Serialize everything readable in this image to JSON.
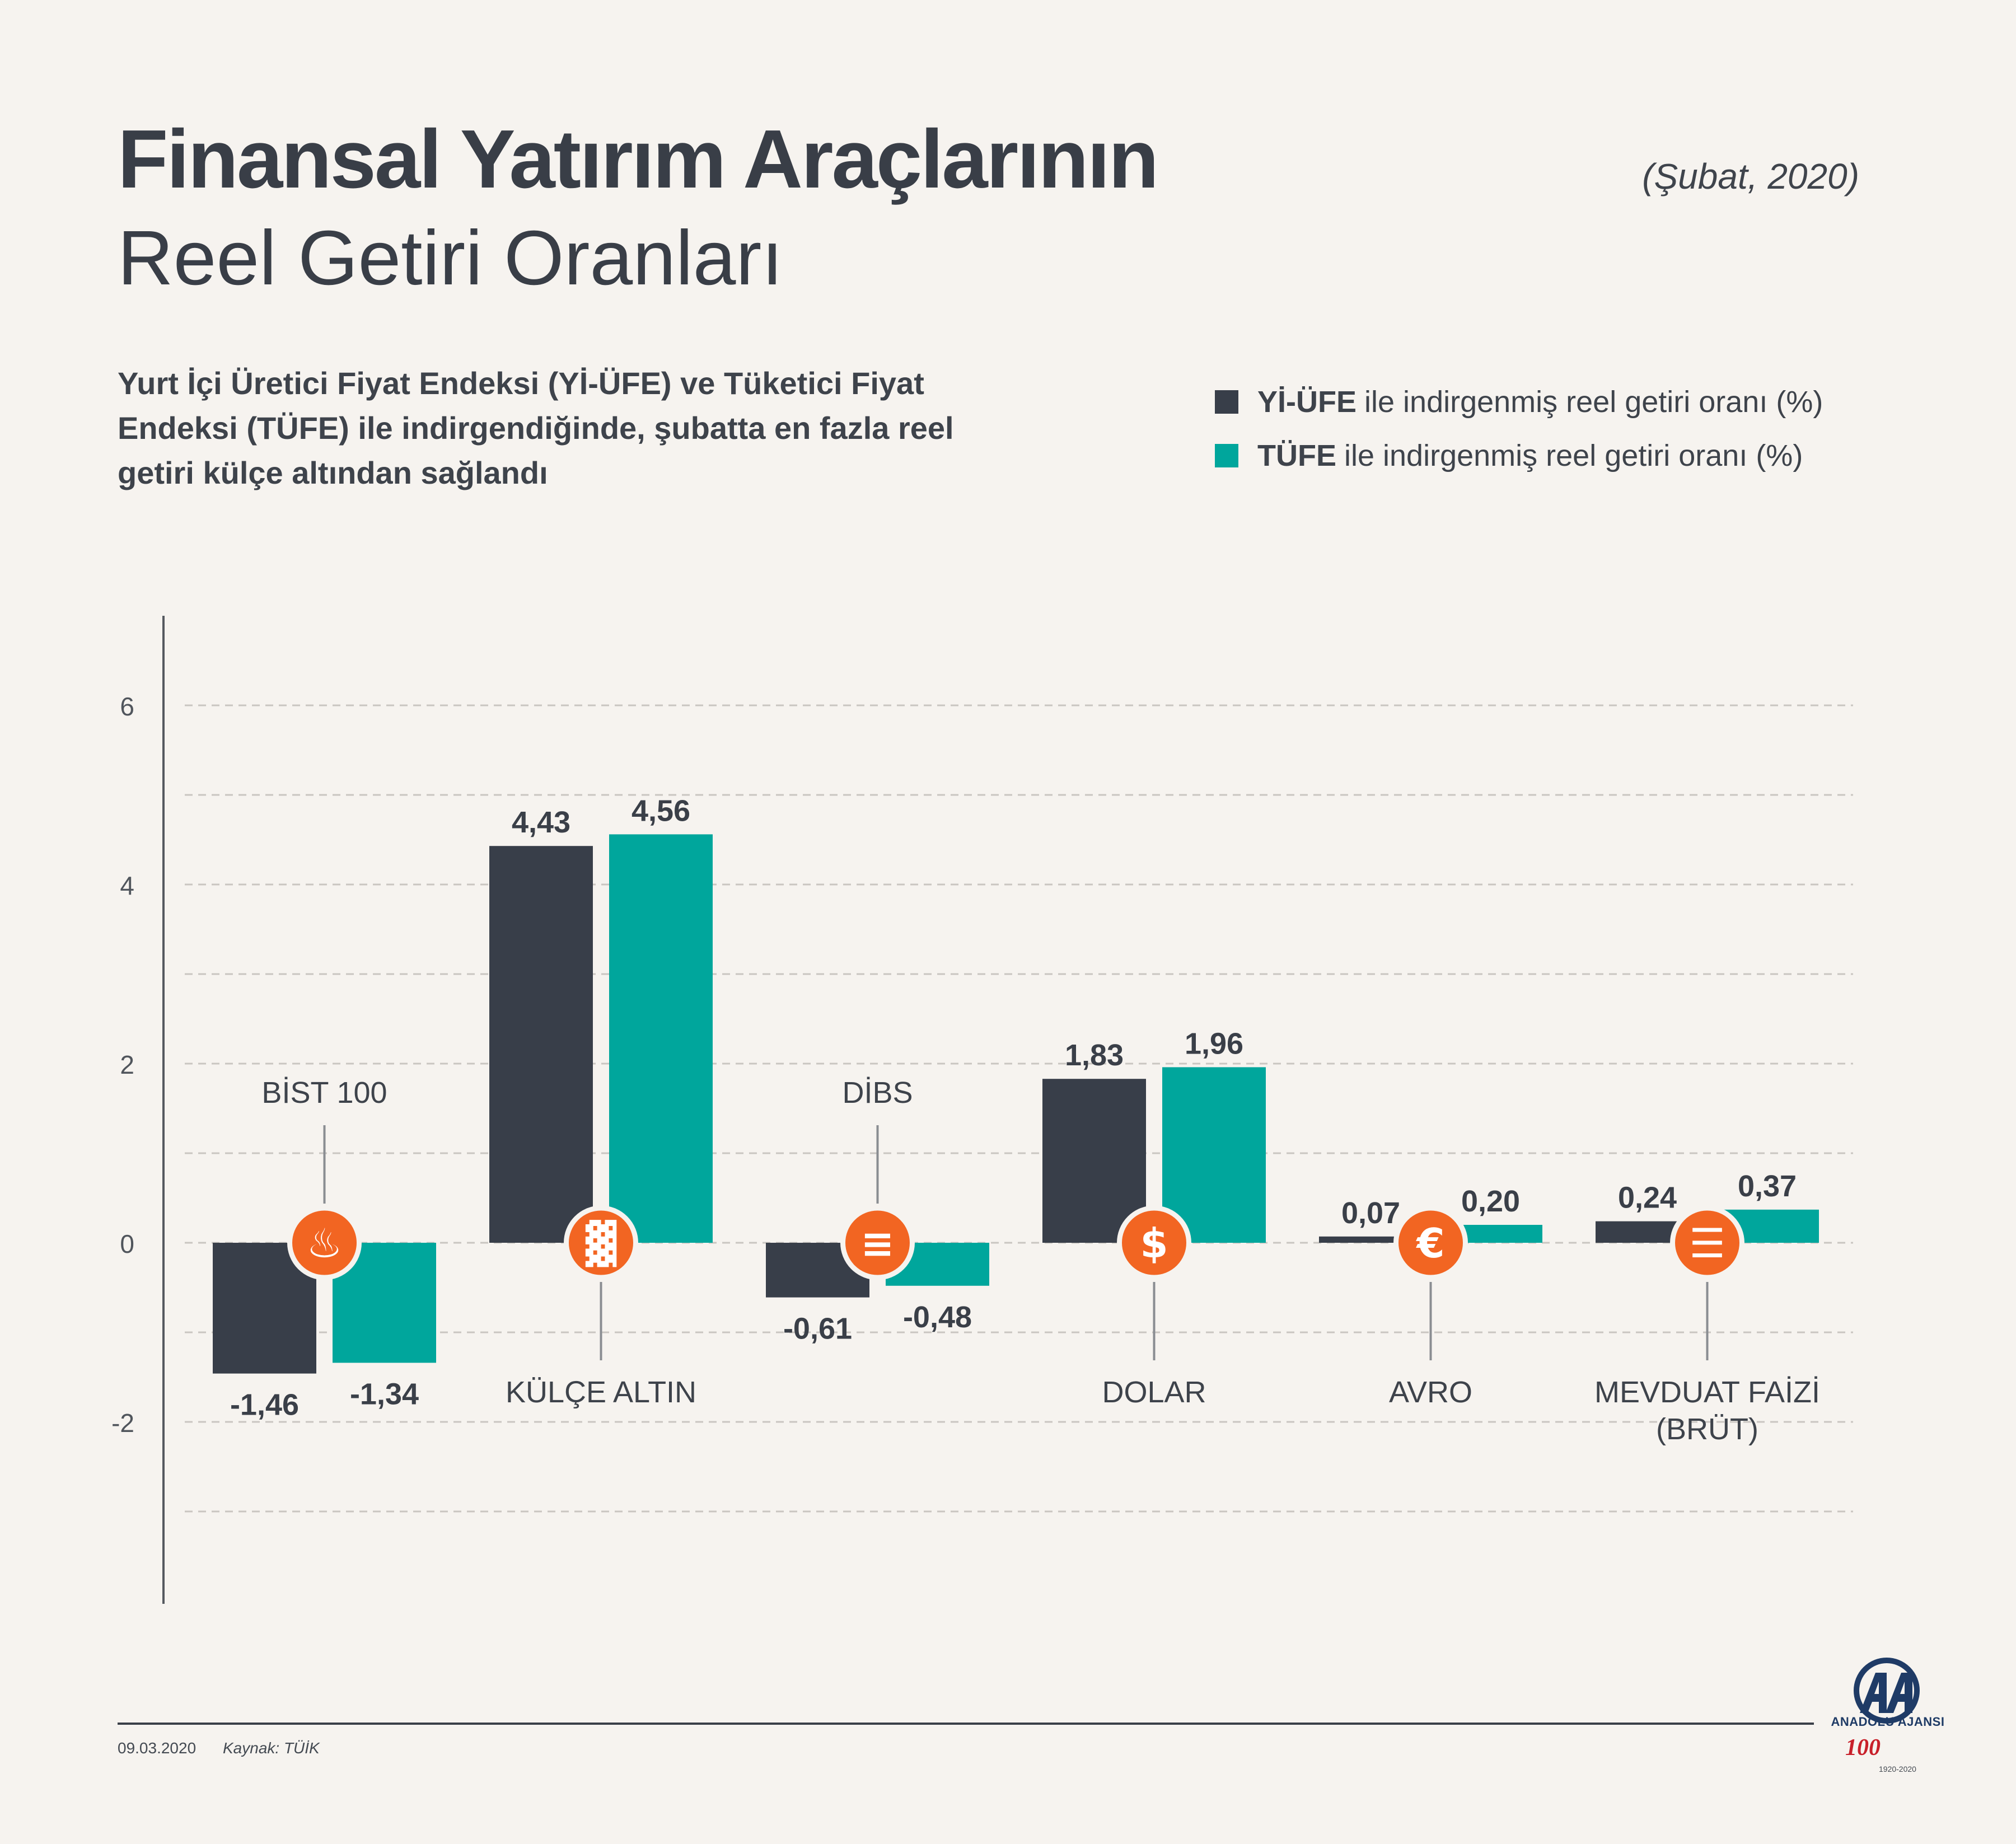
{
  "title_bold": "Finansal Yatırım Araçlarının",
  "title_light": "Reel Getiri Oranları",
  "date_label": "(Şubat, 2020)",
  "subtitle": "Yurt İçi Üretici Fiyat Endeksi (Yİ-ÜFE) ve Tüketici Fiyat Endeksi (TÜFE) ile indirgendiğinde, şubatta en fazla reel getiri külçe altından sağlandı",
  "legend": [
    {
      "bold": "Yİ-ÜFE",
      "text": "ile indirgenmiş reel getiri oranı (%)",
      "color": "#383e49"
    },
    {
      "bold": "TÜFE",
      "text": "ile indirgenmiş reel getiri oranı (%)",
      "color": "#00a69c"
    }
  ],
  "colors": {
    "yiufe": "#383e49",
    "tufe": "#00a69c",
    "icon": "#f26522",
    "axis": "#55595f"
  },
  "chart_data": {
    "type": "bar",
    "categories": [
      "BİST 100",
      "KÜLÇE ALTIN",
      "DİBS",
      "DOLAR",
      "AVRO",
      "MEVDUAT FAİZİ (BRÜT)"
    ],
    "category_label_lines": [
      [
        "BİST 100"
      ],
      [
        "KÜLÇE ALTIN"
      ],
      [
        "DİBS"
      ],
      [
        "DOLAR"
      ],
      [
        "AVRO"
      ],
      [
        "MEVDUAT FAİZİ",
        "(BRÜT)"
      ]
    ],
    "category_icons": [
      "fire-icon",
      "gold-bars-icon",
      "document-icon",
      "dollar-icon",
      "euro-icon",
      "money-stack-icon"
    ],
    "series": [
      {
        "name": "Yİ-ÜFE ile indirgenmiş reel getiri oranı (%)",
        "values": [
          -1.46,
          4.43,
          -0.61,
          1.83,
          0.07,
          0.24
        ],
        "labels": [
          "-1,46",
          "4,43",
          "-0,61",
          "1,83",
          "0,07",
          "0,24"
        ]
      },
      {
        "name": "TÜFE ile indirgenmiş reel getiri oranı (%)",
        "values": [
          -1.34,
          4.56,
          -0.48,
          1.96,
          0.2,
          0.37
        ],
        "labels": [
          "-1,34",
          "4,56",
          "-0,48",
          "1,96",
          "0,20",
          "0,37"
        ]
      }
    ],
    "yticks": [
      6,
      4,
      2,
      0,
      -2
    ],
    "ytick_labels": [
      "6",
      "4",
      "2",
      "0",
      "-2"
    ],
    "ylim": [
      -4,
      7
    ],
    "grid": true,
    "legend_position": "top-right"
  },
  "footer": {
    "date": "09.03.2020",
    "source": "Kaynak: TÜİK"
  },
  "logo": {
    "name": "ANADOLU AJANSI",
    "hundred": "100",
    "years": "1920-2020"
  }
}
